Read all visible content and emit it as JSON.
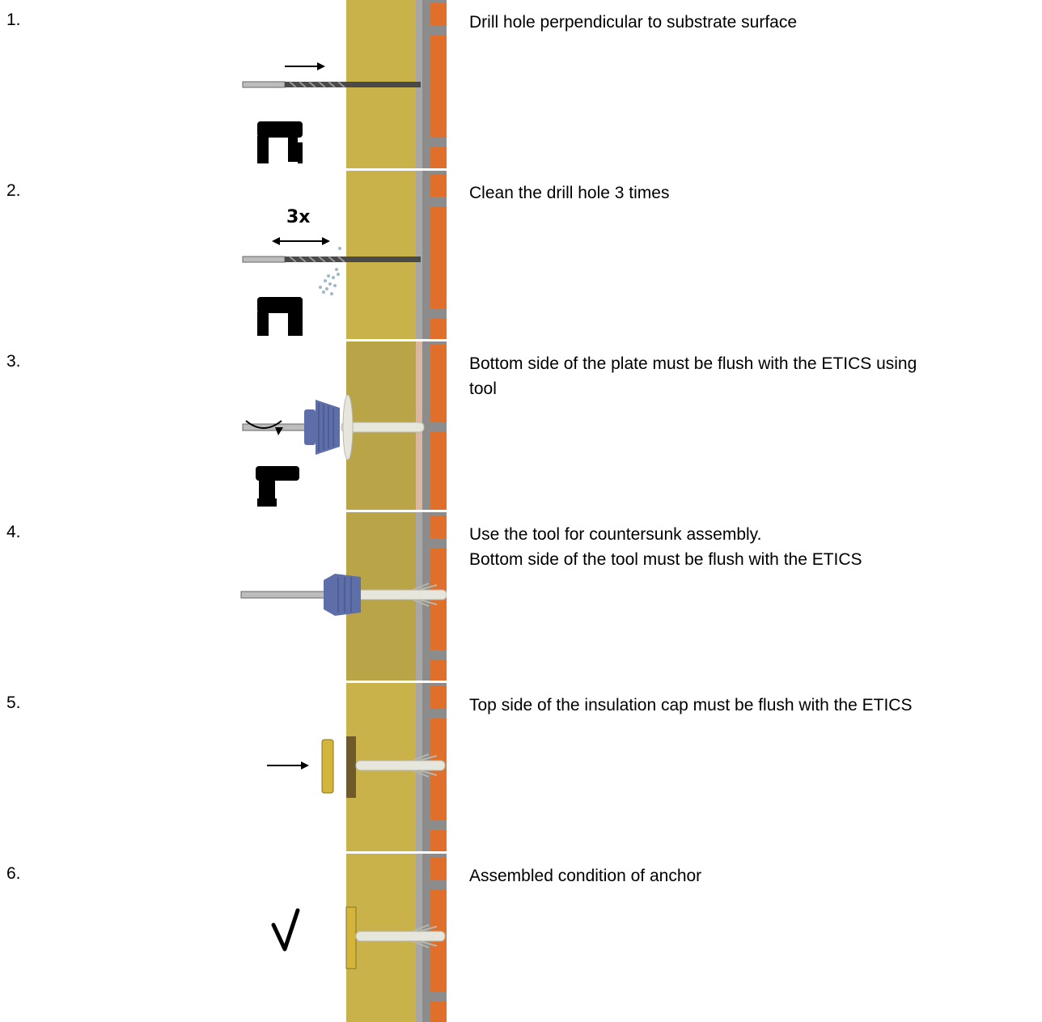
{
  "steps": [
    {
      "number": "1.",
      "text": "Drill hole perpendicular to substrate surface",
      "marker": ""
    },
    {
      "number": "2.",
      "text": "Clean the drill hole 3 times",
      "marker": "3x"
    },
    {
      "number": "3.",
      "text": "Bottom side of the plate must be flush with the ETICS using\ntool",
      "marker": ""
    },
    {
      "number": "4.",
      "text": "Use the tool for countersunk assembly.\nBottom side of the tool must be flush with the ETICS",
      "marker": ""
    },
    {
      "number": "5.",
      "text": "Top side of the insulation cap must be flush with the ETICS",
      "marker": ""
    },
    {
      "number": "6.",
      "text": "Assembled condition of anchor",
      "marker": ""
    }
  ],
  "colors": {
    "insulation": "#c9b24a",
    "brick": "#e06f2c",
    "mortar": "#a7a7a7",
    "plate": "#5d6ea8",
    "anchor": "#e6e6dc"
  }
}
